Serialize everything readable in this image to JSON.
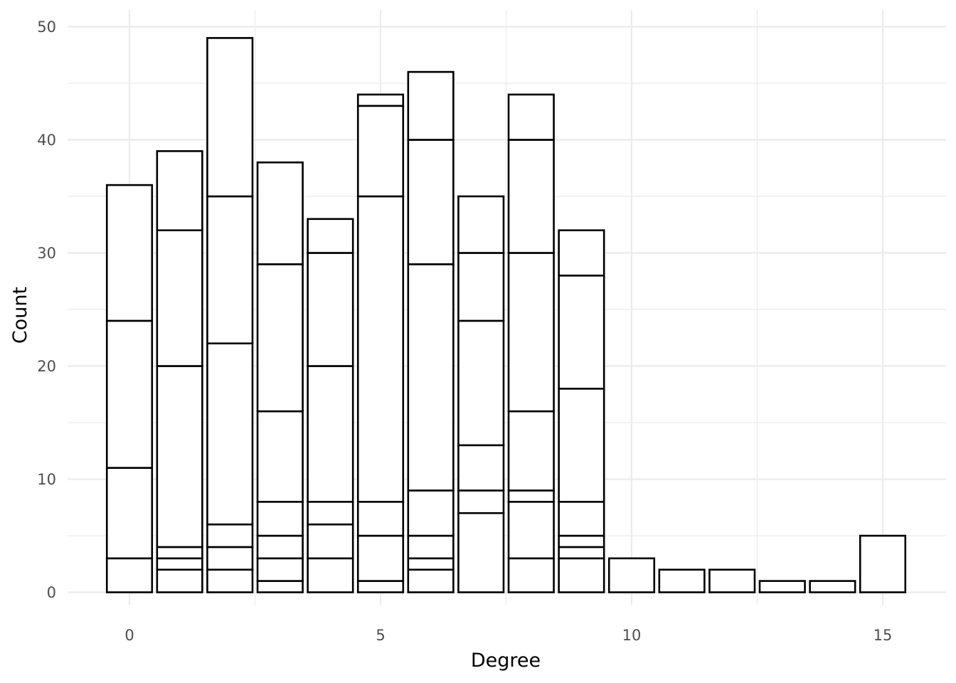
{
  "chart_data": {
    "type": "bar",
    "stacked": true,
    "xlabel": "Degree",
    "ylabel": "Count",
    "xlim": [
      -0.5,
      15.5
    ],
    "ylim": [
      0,
      50
    ],
    "x_ticks": [
      0,
      5,
      10,
      15
    ],
    "y_ticks": [
      0,
      10,
      20,
      30,
      40,
      50
    ],
    "grid": true,
    "legend": "none",
    "bar_fill": "#ffffff",
    "bar_outline": "#000000",
    "grid_color": "#ebebeb",
    "bars": [
      {
        "x": 0,
        "total": 36,
        "segment_boundaries": [
          3,
          11,
          24,
          36
        ]
      },
      {
        "x": 1,
        "total": 39,
        "segment_boundaries": [
          2,
          3,
          4,
          20,
          32,
          39
        ]
      },
      {
        "x": 2,
        "total": 49,
        "segment_boundaries": [
          2,
          4,
          6,
          22,
          35,
          49
        ]
      },
      {
        "x": 3,
        "total": 38,
        "segment_boundaries": [
          1,
          3,
          5,
          8,
          16,
          29,
          38
        ]
      },
      {
        "x": 4,
        "total": 33,
        "segment_boundaries": [
          3,
          6,
          8,
          20,
          30,
          33
        ]
      },
      {
        "x": 5,
        "total": 44,
        "segment_boundaries": [
          1,
          5,
          8,
          35,
          43,
          44
        ]
      },
      {
        "x": 6,
        "total": 46,
        "segment_boundaries": [
          2,
          3,
          5,
          9,
          29,
          40,
          46
        ]
      },
      {
        "x": 7,
        "total": 35,
        "segment_boundaries": [
          7,
          9,
          13,
          24,
          30,
          35
        ]
      },
      {
        "x": 8,
        "total": 44,
        "segment_boundaries": [
          3,
          8,
          9,
          16,
          30,
          40,
          44
        ]
      },
      {
        "x": 9,
        "total": 32,
        "segment_boundaries": [
          3,
          4,
          5,
          8,
          18,
          28,
          32
        ]
      },
      {
        "x": 10,
        "total": 3,
        "segment_boundaries": [
          3
        ]
      },
      {
        "x": 11,
        "total": 2,
        "segment_boundaries": [
          2
        ]
      },
      {
        "x": 12,
        "total": 2,
        "segment_boundaries": [
          2
        ]
      },
      {
        "x": 13,
        "total": 1,
        "segment_boundaries": [
          1
        ]
      },
      {
        "x": 14,
        "total": 1,
        "segment_boundaries": [
          1
        ]
      },
      {
        "x": 15,
        "total": 5,
        "segment_boundaries": [
          5
        ]
      }
    ]
  }
}
